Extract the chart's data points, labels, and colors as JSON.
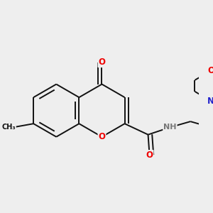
{
  "bg_color": "#eeeeee",
  "bond_color": "#111111",
  "bond_width": 1.4,
  "dbl_sep": 0.055,
  "atom_colors": {
    "O": "#ee0000",
    "N": "#2222cc",
    "H": "#777777",
    "C": "#111111"
  },
  "font_size": 8.5,
  "fig_width": 3.0,
  "fig_height": 3.0,
  "dpi": 100
}
